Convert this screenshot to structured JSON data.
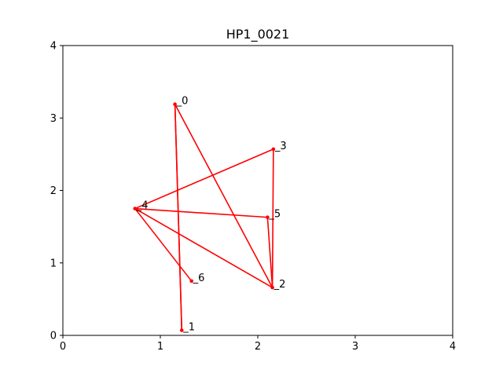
{
  "chart_data": {
    "type": "line",
    "title": "HP1_0021",
    "xlabel": "",
    "ylabel": "",
    "xlim": [
      0,
      4
    ],
    "ylim": [
      0,
      4
    ],
    "xticks": [
      "0",
      "1",
      "2",
      "3",
      "4"
    ],
    "yticks": [
      "0",
      "1",
      "2",
      "3",
      "4"
    ],
    "grid": false,
    "color": "#ff0000",
    "points": [
      {
        "label": "_0",
        "x": 1.15,
        "y": 3.19
      },
      {
        "label": "_1",
        "x": 1.22,
        "y": 0.07
      },
      {
        "label": "_2",
        "x": 2.15,
        "y": 0.66
      },
      {
        "label": "_3",
        "x": 2.16,
        "y": 2.57
      },
      {
        "label": "_4",
        "x": 0.74,
        "y": 1.75
      },
      {
        "label": "_5",
        "x": 2.1,
        "y": 1.63
      },
      {
        "label": "_6",
        "x": 1.32,
        "y": 0.75
      }
    ],
    "path_order": [
      0,
      1,
      0,
      2,
      3,
      4,
      5,
      2,
      4,
      6
    ]
  }
}
